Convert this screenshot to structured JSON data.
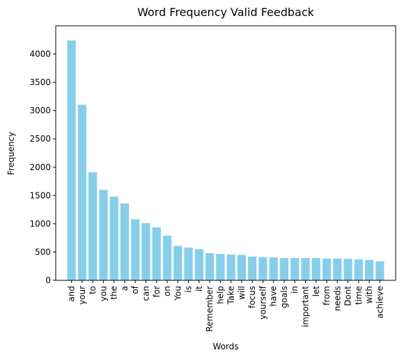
{
  "chart_data": {
    "type": "bar",
    "title": "Word Frequency Valid Feedback",
    "xlabel": "Words",
    "ylabel": "Frequency",
    "ylim": [
      0,
      4500
    ],
    "yticks": [
      0,
      500,
      1000,
      1500,
      2000,
      2500,
      3000,
      3500,
      4000
    ],
    "bar_color": "#87CEEB",
    "grid": false,
    "categories": [
      "and",
      "your",
      "to",
      "you",
      "the",
      "a",
      "of",
      "can",
      "for",
      "on",
      "You",
      "is",
      "it",
      "Remember",
      "help",
      "Take",
      "will",
      "focus",
      "yourself",
      "have",
      "goals",
      "in",
      "important",
      "let",
      "from",
      "needs",
      "Dont",
      "time",
      "with",
      "achieve"
    ],
    "values": [
      4240,
      3105,
      1910,
      1600,
      1480,
      1360,
      1080,
      1010,
      935,
      790,
      610,
      580,
      550,
      480,
      465,
      455,
      450,
      420,
      410,
      405,
      395,
      395,
      395,
      395,
      385,
      385,
      380,
      370,
      360,
      335
    ]
  }
}
